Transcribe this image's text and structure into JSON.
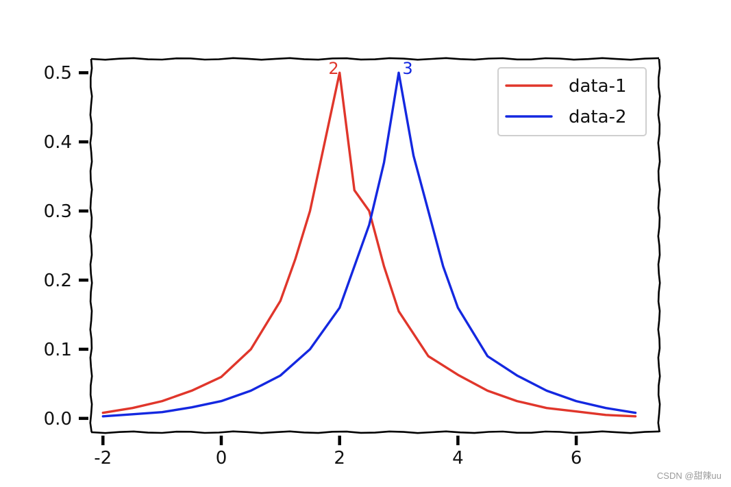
{
  "chart_data": {
    "type": "line",
    "title": "",
    "xlabel": "",
    "ylabel": "",
    "xlim": [
      -2.2,
      7.4
    ],
    "ylim": [
      -0.02,
      0.52
    ],
    "xticks": [
      -2,
      0,
      2,
      4,
      6
    ],
    "xtick_labels": [
      "-2",
      "0",
      "2",
      "4",
      "6"
    ],
    "yticks": [
      0.0,
      0.1,
      0.2,
      0.3,
      0.4,
      0.5
    ],
    "ytick_labels": [
      "0.0",
      "0.1",
      "0.2",
      "0.3",
      "0.4",
      "0.5"
    ],
    "grid": false,
    "legend_position": "top-right",
    "series": [
      {
        "name": "data-1",
        "color": "#e0362b",
        "x": [
          -2.0,
          -1.5,
          -1.0,
          -0.5,
          0.0,
          0.5,
          1.0,
          1.25,
          1.5,
          1.75,
          2.0,
          2.25,
          2.5,
          2.75,
          3.0,
          3.5,
          4.0,
          4.5,
          5.0,
          5.5,
          6.0,
          6.5,
          7.0
        ],
        "y": [
          0.008,
          0.015,
          0.025,
          0.04,
          0.06,
          0.1,
          0.17,
          0.23,
          0.3,
          0.4,
          0.5,
          0.33,
          0.3,
          0.22,
          0.155,
          0.09,
          0.063,
          0.04,
          0.025,
          0.015,
          0.01,
          0.005,
          0.003
        ]
      },
      {
        "name": "data-2",
        "color": "#1428e0",
        "x": [
          -2.0,
          -1.5,
          -1.0,
          -0.5,
          0.0,
          0.5,
          1.0,
          1.5,
          2.0,
          2.5,
          2.75,
          3.0,
          3.25,
          3.5,
          3.75,
          4.0,
          4.5,
          5.0,
          5.5,
          6.0,
          6.5,
          7.0
        ],
        "y": [
          0.003,
          0.006,
          0.009,
          0.016,
          0.025,
          0.04,
          0.062,
          0.1,
          0.16,
          0.28,
          0.37,
          0.5,
          0.38,
          0.3,
          0.22,
          0.16,
          0.09,
          0.062,
          0.04,
          0.025,
          0.015,
          0.008
        ]
      }
    ],
    "annotations": [
      {
        "text": "2",
        "x": 1.9,
        "y": 0.5,
        "color": "#e0362b"
      },
      {
        "text": "3",
        "x": 3.15,
        "y": 0.5,
        "color": "#1428e0"
      }
    ]
  },
  "watermark": "CSDN @甜辣uu"
}
